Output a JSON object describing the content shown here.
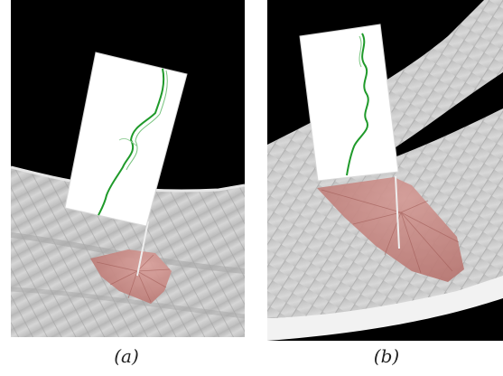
{
  "figure": {
    "panels": [
      {
        "id": "a",
        "caption": "(a)"
      },
      {
        "id": "b",
        "caption": "(b)"
      }
    ],
    "colors": {
      "background": "#000000",
      "surface": "#c9c9c9",
      "fan": "#c98c88",
      "trace": "#1f9a2a",
      "card": "#ffffff"
    }
  }
}
